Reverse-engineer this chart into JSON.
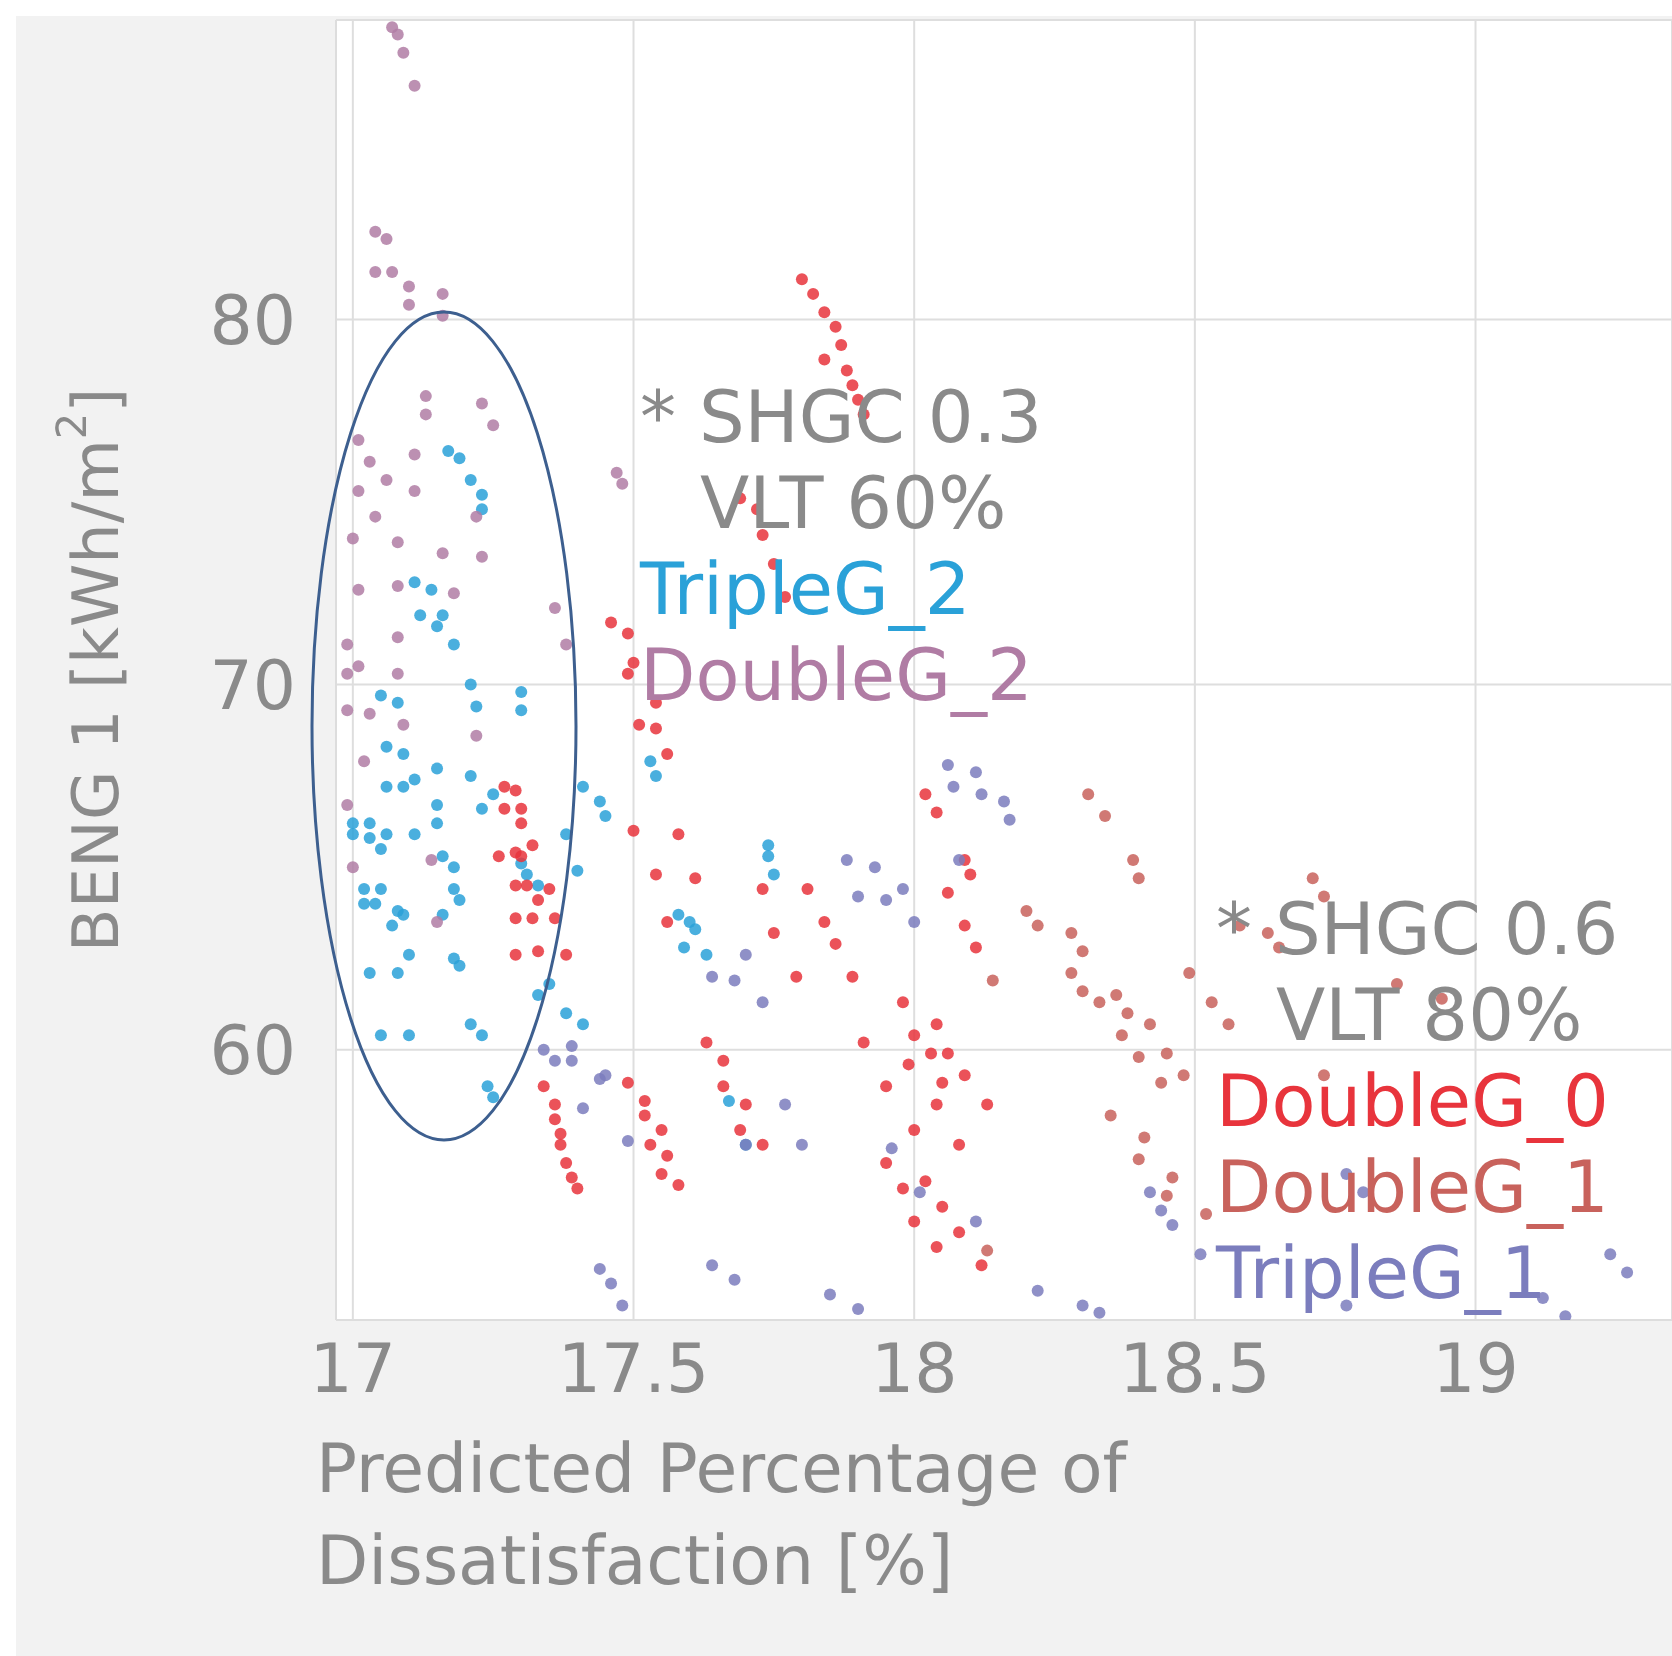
{
  "chart_data": {
    "type": "scatter",
    "xlabel": "Predicted Percentage of Dissatisfaction [%]",
    "ylabel": "BENG 1 [kWh/m$^{2}$]",
    "xlim": [
      16.97,
      19.35
    ],
    "ylim": [
      52.6,
      88.2
    ],
    "xticks": [
      17,
      17.5,
      18,
      18.5,
      19
    ],
    "yticks": [
      60,
      70,
      80
    ],
    "grid": true,
    "marker": "circle",
    "annotations": [
      "* SHGC 0.3",
      "VLT 60%",
      "* SHGC 0.6",
      "VLT 80%"
    ],
    "series": [
      {
        "name": "TripleG_2",
        "color": "#2aa1d8",
        "x": [
          17.17,
          17.19,
          17.21,
          17.23,
          17.23,
          17.11,
          17.14,
          17.16,
          17.12,
          17.15,
          17.18,
          17.21,
          17.22,
          17.3,
          17.3,
          17.05,
          17.08,
          17.06,
          17.09,
          17.15,
          17.11,
          17.06,
          17.09,
          17.21,
          17.15,
          17.23,
          17.25,
          17.0,
          17.03,
          17.0,
          17.03,
          17.06,
          17.11,
          17.15,
          17.05,
          17.16,
          17.18,
          17.02,
          17.05,
          17.02,
          17.04,
          17.08,
          17.09,
          17.07,
          17.18,
          17.19,
          17.16,
          17.1,
          17.08,
          17.03,
          17.18,
          17.19,
          17.05,
          17.1,
          17.21,
          17.23,
          17.24,
          17.25,
          17.3,
          17.31,
          17.33,
          17.38,
          17.4,
          17.41,
          17.44,
          17.45,
          17.53,
          17.54,
          17.74,
          17.74,
          17.75,
          17.58,
          17.6,
          17.61,
          17.59,
          17.63,
          17.35,
          17.38,
          17.41,
          17.67,
          17.7,
          17.33
        ],
        "values": [
          76.4,
          76.2,
          75.6,
          75.2,
          74.8,
          72.8,
          72.6,
          71.9,
          71.9,
          71.6,
          71.1,
          70.0,
          69.4,
          69.8,
          69.3,
          69.7,
          69.5,
          68.3,
          68.1,
          67.7,
          67.4,
          67.2,
          67.2,
          67.5,
          66.7,
          66.6,
          67.0,
          66.2,
          66.2,
          65.9,
          65.8,
          65.9,
          65.9,
          66.2,
          65.5,
          65.3,
          65.0,
          64.4,
          64.4,
          64.0,
          64.0,
          63.8,
          63.7,
          63.4,
          64.4,
          64.1,
          63.7,
          62.6,
          62.1,
          62.1,
          62.5,
          62.3,
          60.4,
          60.4,
          60.7,
          60.4,
          59.0,
          58.7,
          65.1,
          64.8,
          64.5,
          65.9,
          64.9,
          67.2,
          66.8,
          66.4,
          67.9,
          67.5,
          65.6,
          65.3,
          64.8,
          63.7,
          63.5,
          63.3,
          62.8,
          62.6,
          61.8,
          61.0,
          60.7,
          58.6,
          57.4,
          61.5
        ]
      },
      {
        "name": "DoubleG_2",
        "color": "#b07ca4",
        "x": [
          17.07,
          17.08,
          17.09,
          17.11,
          17.04,
          17.06,
          17.04,
          17.07,
          17.1,
          17.1,
          17.16,
          17.16,
          17.13,
          17.13,
          17.23,
          17.25,
          17.01,
          17.03,
          17.06,
          17.11,
          17.01,
          17.11,
          17.04,
          17.22,
          17.23,
          17.0,
          17.08,
          17.16,
          17.01,
          17.08,
          17.18,
          17.08,
          16.99,
          17.01,
          17.47,
          17.48,
          17.36,
          17.38,
          16.99,
          17.08,
          16.99,
          17.03,
          17.09,
          17.02,
          17.22,
          16.99,
          17.14,
          17.15,
          17.0
        ],
        "values": [
          88.0,
          87.8,
          87.3,
          86.4,
          82.4,
          82.2,
          81.3,
          81.3,
          80.9,
          80.4,
          80.7,
          80.1,
          77.9,
          77.4,
          77.7,
          77.1,
          76.7,
          76.1,
          75.6,
          76.3,
          75.3,
          75.3,
          74.6,
          74.6,
          73.5,
          74.0,
          73.9,
          73.6,
          72.6,
          72.7,
          72.5,
          71.3,
          71.1,
          70.5,
          75.8,
          75.5,
          72.1,
          71.1,
          70.3,
          70.3,
          69.3,
          69.2,
          68.9,
          67.9,
          68.6,
          66.7,
          65.2,
          63.5,
          65.0
        ]
      },
      {
        "name": "DoubleG_0",
        "color": "#e8343c",
        "x": [
          17.8,
          17.82,
          17.84,
          17.86,
          17.87,
          17.84,
          17.88,
          17.89,
          17.9,
          17.91,
          17.69,
          17.72,
          17.73,
          17.75,
          17.77,
          17.46,
          17.49,
          17.5,
          17.49,
          17.54,
          17.51,
          17.54,
          17.56,
          17.27,
          17.29,
          17.27,
          17.3,
          17.3,
          17.32,
          17.26,
          17.29,
          17.3,
          17.31,
          17.29,
          17.35,
          17.33,
          17.29,
          17.32,
          17.36,
          17.29,
          17.33,
          17.38,
          17.34,
          17.36,
          17.36,
          17.37,
          17.37,
          17.38,
          17.39,
          17.4,
          17.49,
          17.52,
          17.52,
          17.55,
          17.53,
          17.56,
          17.55,
          17.58,
          17.5,
          17.58,
          17.54,
          17.61,
          17.56,
          17.63,
          17.66,
          17.66,
          17.7,
          17.69,
          17.73,
          17.73,
          17.75,
          17.81,
          17.84,
          17.86,
          17.89,
          17.79,
          17.91,
          17.95,
          17.98,
          18.0,
          18.04,
          17.99,
          18.03,
          18.06,
          18.05,
          18.04,
          18.09,
          18.13,
          18.0,
          18.08,
          17.95,
          17.98,
          18.02,
          18.05,
          18.08,
          18.0,
          18.04,
          18.12,
          18.02,
          18.04,
          18.06,
          18.09,
          18.1,
          18.09,
          18.11
        ],
        "values": [
          81.1,
          80.7,
          80.2,
          79.8,
          79.3,
          78.9,
          78.6,
          78.2,
          77.8,
          77.4,
          75.1,
          74.8,
          74.1,
          73.3,
          72.4,
          71.7,
          71.4,
          70.6,
          70.3,
          69.5,
          68.9,
          68.8,
          68.1,
          67.2,
          67.1,
          66.6,
          66.6,
          66.2,
          65.6,
          65.3,
          65.4,
          65.3,
          64.5,
          64.5,
          64.4,
          64.1,
          63.6,
          63.6,
          63.6,
          62.6,
          62.7,
          62.6,
          59.0,
          58.5,
          58.1,
          57.7,
          57.4,
          56.9,
          56.5,
          56.2,
          59.1,
          58.6,
          58.2,
          57.8,
          57.4,
          57.1,
          56.6,
          56.3,
          66.0,
          65.9,
          64.8,
          64.7,
          63.5,
          60.2,
          59.7,
          59.0,
          58.5,
          57.8,
          57.4,
          64.4,
          63.2,
          64.4,
          63.5,
          62.9,
          62.0,
          62.0,
          60.2,
          59.0,
          61.3,
          60.4,
          60.7,
          59.6,
          59.9,
          59.9,
          59.1,
          58.5,
          59.3,
          58.5,
          57.8,
          57.4,
          56.9,
          56.2,
          56.4,
          55.7,
          55.0,
          55.3,
          54.6,
          54.1,
          67.0,
          66.5,
          64.3,
          65.2,
          64.8,
          63.4,
          62.8
        ]
      },
      {
        "name": "DoubleG_1",
        "color": "#c8625c",
        "x": [
          18.31,
          18.34,
          18.39,
          18.4,
          18.2,
          18.22,
          18.28,
          18.3,
          18.28,
          18.3,
          18.33,
          18.36,
          18.38,
          18.42,
          18.37,
          18.4,
          18.45,
          18.44,
          18.48,
          18.49,
          18.53,
          18.56,
          18.14,
          18.35,
          18.41,
          18.4,
          18.46,
          18.45,
          18.52,
          18.13,
          18.71,
          18.73,
          18.58,
          18.63,
          18.65,
          18.73,
          18.86,
          18.94
        ],
        "values": [
          67.0,
          66.4,
          65.2,
          64.7,
          63.8,
          63.4,
          63.2,
          62.7,
          62.1,
          61.6,
          61.3,
          61.5,
          61.0,
          60.7,
          60.4,
          59.8,
          59.9,
          59.1,
          59.3,
          62.1,
          61.3,
          60.7,
          61.9,
          58.2,
          57.6,
          57.0,
          56.5,
          56.0,
          55.5,
          54.5,
          64.7,
          64.2,
          63.4,
          63.2,
          62.8,
          59.3,
          61.8,
          61.4
        ]
      },
      {
        "name": "TripleG_1",
        "color": "#7b7dbd",
        "x": [
          18.06,
          18.11,
          18.07,
          18.12,
          18.16,
          18.17,
          17.88,
          17.93,
          17.9,
          17.95,
          17.98,
          18.0,
          18.08,
          17.7,
          17.64,
          17.68,
          17.73,
          17.34,
          17.36,
          17.39,
          17.39,
          17.44,
          17.45,
          17.41,
          17.49,
          17.7,
          17.77,
          17.8,
          17.96,
          18.01,
          18.11,
          17.44,
          17.46,
          17.48,
          17.64,
          17.68,
          17.85,
          17.9,
          18.42,
          18.44,
          18.46,
          18.22,
          18.3,
          18.33,
          18.51,
          18.77,
          18.8,
          18.84,
          19.24,
          19.27,
          18.77,
          19.07,
          19.12,
          19.16
        ],
        "values": [
          67.8,
          67.6,
          67.2,
          67.0,
          66.8,
          66.3,
          65.2,
          65.0,
          64.2,
          64.1,
          64.4,
          63.5,
          65.2,
          62.6,
          62.0,
          61.9,
          61.3,
          60.0,
          59.7,
          60.1,
          59.7,
          59.2,
          59.3,
          58.4,
          57.5,
          57.4,
          58.5,
          57.4,
          57.3,
          56.1,
          55.3,
          54.0,
          53.6,
          53.0,
          54.1,
          53.7,
          53.3,
          52.9,
          56.1,
          55.6,
          55.2,
          53.4,
          53.0,
          52.8,
          54.4,
          56.6,
          56.1,
          null,
          54.4,
          53.9,
          53.0,
          null,
          53.2,
          52.7
        ]
      }
    ]
  }
}
